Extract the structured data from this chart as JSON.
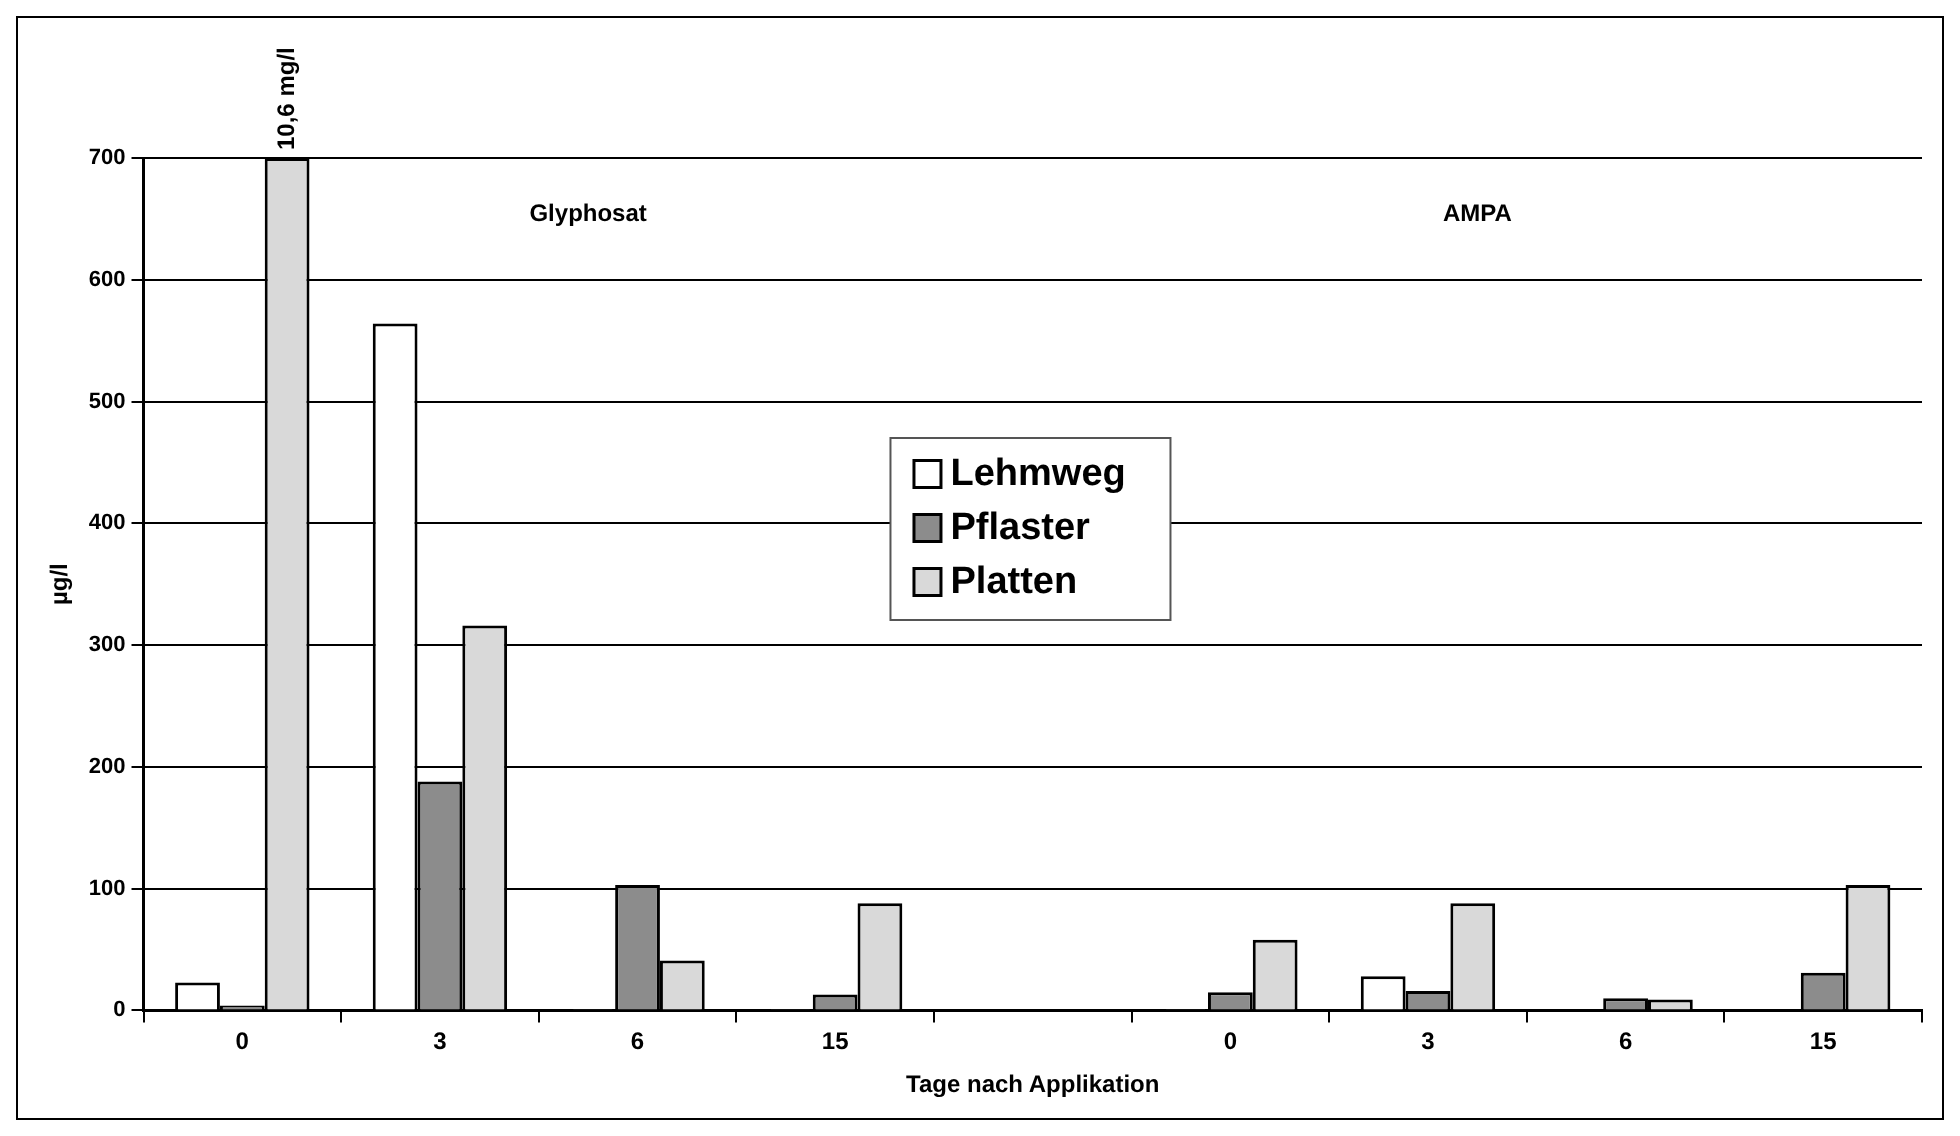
{
  "chart_data": {
    "type": "bar",
    "xlabel": "Tage nach Applikation",
    "ylabel": "µg/l",
    "categories": [
      "0",
      "3",
      "6",
      "15",
      null,
      "0",
      "3",
      "6",
      "15"
    ],
    "series": [
      {
        "name": "Lehmweg",
        "color": "#ffffff",
        "values": [
          23,
          564,
          1,
          1,
          null,
          1,
          28,
          0,
          0
        ]
      },
      {
        "name": "Pflaster",
        "color": "#8c8c8c",
        "values": [
          4,
          188,
          103,
          13,
          null,
          15,
          16,
          10,
          31
        ]
      },
      {
        "name": "Platten",
        "color": "#d9d9d9",
        "values": [
          700,
          316,
          41,
          88,
          null,
          58,
          88,
          9,
          103
        ]
      }
    ],
    "ylim": [
      0,
      700
    ],
    "yticks": [
      0,
      100,
      200,
      300,
      400,
      500,
      600,
      700
    ],
    "grid": "y",
    "legend": "center",
    "annotations": [
      "Glyphosat",
      "AMPA",
      "10,6 mg/l"
    ]
  }
}
